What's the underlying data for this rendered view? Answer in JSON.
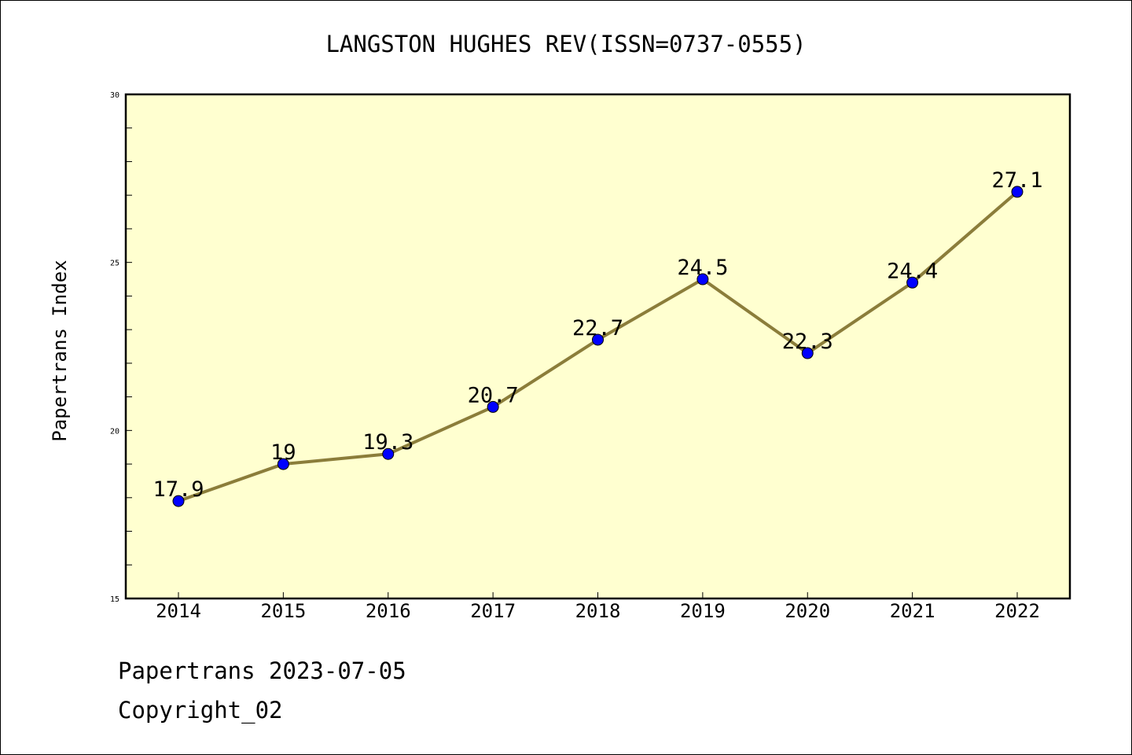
{
  "footer": {
    "line1": "Papertrans 2023-07-05",
    "line2": "Copyright_02"
  },
  "chart_data": {
    "type": "line",
    "title": "LANGSTON HUGHES REV(ISSN=0737-0555)",
    "xlabel": "",
    "ylabel": "Papertrans Index",
    "categories": [
      "2014",
      "2015",
      "2016",
      "2017",
      "2018",
      "2019",
      "2020",
      "2021",
      "2022"
    ],
    "series": [
      {
        "values": [
          17.9,
          19,
          19.3,
          20.7,
          22.7,
          24.5,
          22.3,
          24.4,
          27.1
        ],
        "data_labels": [
          "17.9",
          "19",
          "19.3",
          "20.7",
          "22.7",
          "24.5",
          "22.3",
          "24.4",
          "27.1"
        ],
        "line_color": "#8b7d3a",
        "marker_color": "#0000ff"
      }
    ],
    "ylim": [
      15,
      30
    ],
    "yticks": [
      "15",
      "20",
      "25",
      "30"
    ],
    "y_minor_step": 1,
    "grid": false,
    "plot_background": "#ffffd0"
  }
}
